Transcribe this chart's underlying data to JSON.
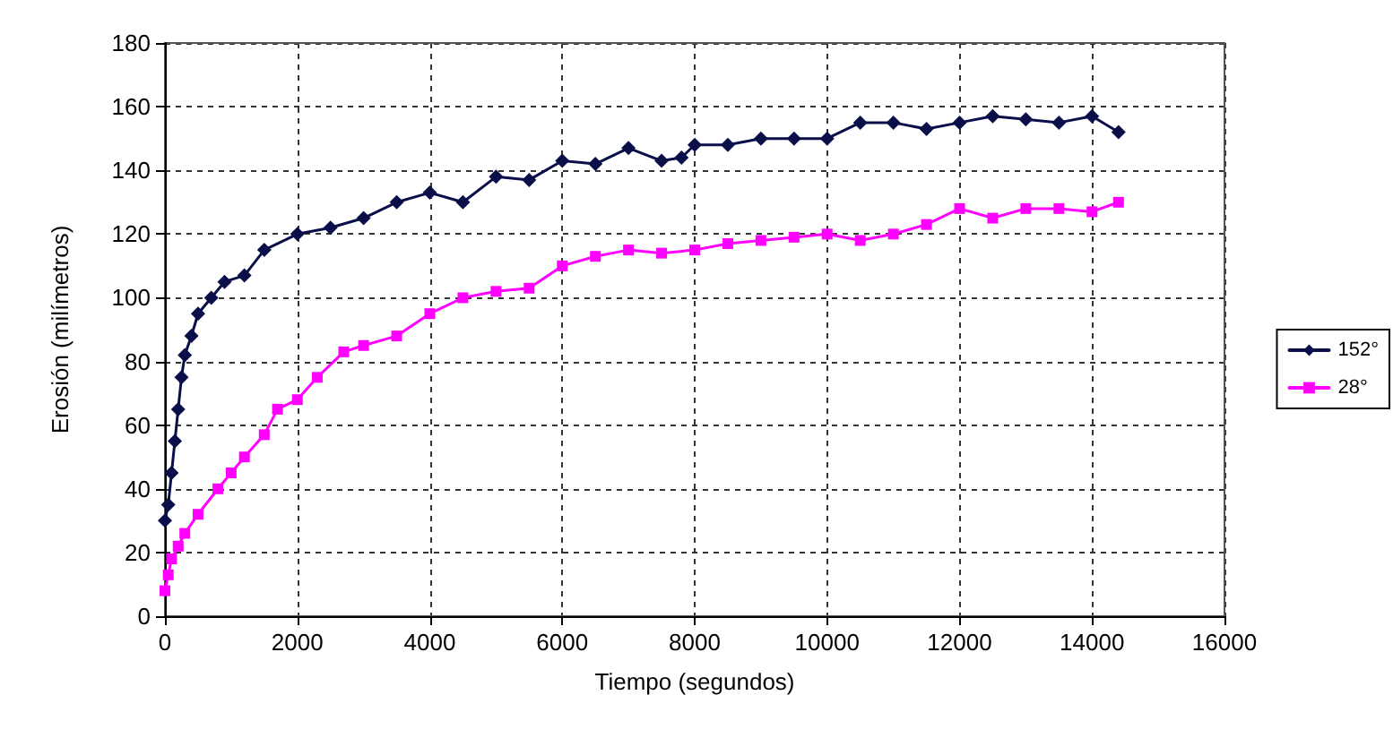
{
  "chart_data": {
    "type": "line",
    "xlabel": "Tiempo (segundos)",
    "ylabel": "Erosión (milímetros)",
    "xlim": [
      0,
      16000
    ],
    "xticks": [
      0,
      2000,
      4000,
      6000,
      8000,
      10000,
      12000,
      14000,
      16000
    ],
    "ylim": [
      0,
      180
    ],
    "yticks": [
      0,
      20,
      40,
      60,
      80,
      100,
      120,
      140,
      160,
      180
    ],
    "grid": true,
    "legend": "right",
    "line_style": "solid",
    "series": [
      {
        "name": "152°",
        "color": "#0a0f4a",
        "marker": "diamond",
        "x": [
          0,
          50,
          100,
          150,
          200,
          250,
          300,
          400,
          500,
          700,
          900,
          1200,
          1500,
          2000,
          2500,
          3000,
          3500,
          4000,
          4500,
          5000,
          5500,
          6000,
          6500,
          7000,
          7500,
          7800,
          8000,
          8500,
          9000,
          9500,
          10000,
          10500,
          11000,
          11500,
          12000,
          12500,
          13000,
          13500,
          14000,
          14400
        ],
        "values": [
          30,
          35,
          45,
          55,
          65,
          75,
          82,
          88,
          95,
          100,
          105,
          107,
          115,
          120,
          122,
          125,
          130,
          133,
          130,
          138,
          137,
          143,
          142,
          147,
          143,
          144,
          148,
          148,
          150,
          150,
          150,
          155,
          155,
          153,
          155,
          157,
          156,
          155,
          157,
          152
        ]
      },
      {
        "name": "28°",
        "color": "#ff00ff",
        "marker": "square",
        "x": [
          0,
          50,
          100,
          200,
          300,
          500,
          800,
          1000,
          1200,
          1500,
          1700,
          2000,
          2300,
          2700,
          3000,
          3500,
          4000,
          4500,
          5000,
          5500,
          6000,
          6500,
          7000,
          7500,
          8000,
          8500,
          9000,
          9500,
          10000,
          10500,
          11000,
          11500,
          12000,
          12500,
          13000,
          13500,
          14000,
          14400
        ],
        "values": [
          8,
          13,
          18,
          22,
          26,
          32,
          40,
          45,
          50,
          57,
          65,
          68,
          75,
          83,
          85,
          88,
          95,
          100,
          102,
          103,
          110,
          113,
          115,
          114,
          115,
          117,
          118,
          119,
          120,
          118,
          120,
          123,
          128,
          125,
          128,
          128,
          127,
          130
        ]
      }
    ]
  }
}
